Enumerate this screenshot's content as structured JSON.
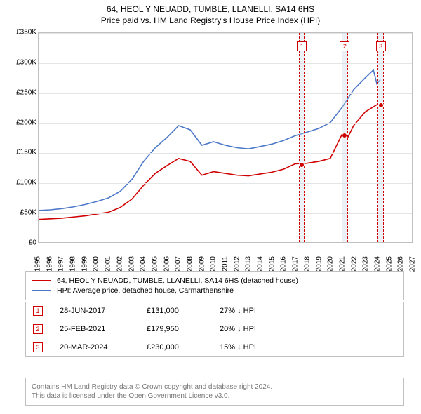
{
  "title": {
    "line1": "64, HEOL Y NEUADD, TUMBLE, LLANELLI, SA14 6HS",
    "line2": "Price paid vs. HM Land Registry's House Price Index (HPI)"
  },
  "chart": {
    "type": "line",
    "x_axis": {
      "min": 1995,
      "max": 2027,
      "ticks": [
        1995,
        1996,
        1997,
        1998,
        1999,
        2000,
        2001,
        2002,
        2003,
        2004,
        2005,
        2006,
        2007,
        2008,
        2009,
        2010,
        2011,
        2012,
        2013,
        2014,
        2015,
        2016,
        2017,
        2018,
        2019,
        2020,
        2021,
        2022,
        2023,
        2024,
        2025,
        2026,
        2027
      ]
    },
    "y_axis": {
      "min": 0,
      "max": 350000,
      "tick_step": 50000,
      "tick_labels": [
        "£0",
        "£50K",
        "£100K",
        "£150K",
        "£200K",
        "£250K",
        "£300K",
        "£350K"
      ]
    },
    "background_color": "#ffffff",
    "grid_color": "#e5e5e5",
    "series": [
      {
        "name": "property",
        "color": "#d00000",
        "width": 1.6,
        "data": [
          [
            1995,
            38000
          ],
          [
            1996,
            39000
          ],
          [
            1997,
            40000
          ],
          [
            1998,
            42000
          ],
          [
            1999,
            44000
          ],
          [
            2000,
            47000
          ],
          [
            2001,
            50000
          ],
          [
            2002,
            58000
          ],
          [
            2003,
            72000
          ],
          [
            2004,
            95000
          ],
          [
            2005,
            115000
          ],
          [
            2006,
            128000
          ],
          [
            2007,
            140000
          ],
          [
            2008,
            135000
          ],
          [
            2009,
            112000
          ],
          [
            2010,
            118000
          ],
          [
            2011,
            115000
          ],
          [
            2012,
            112000
          ],
          [
            2013,
            111000
          ],
          [
            2014,
            114000
          ],
          [
            2015,
            117000
          ],
          [
            2016,
            122000
          ],
          [
            2017,
            131000
          ],
          [
            2018,
            132000
          ],
          [
            2019,
            135000
          ],
          [
            2020,
            140000
          ],
          [
            2021,
            179950
          ],
          [
            2021.5,
            175000
          ],
          [
            2022,
            195000
          ],
          [
            2023,
            218000
          ],
          [
            2024,
            230000
          ]
        ]
      },
      {
        "name": "hpi",
        "color": "#4c78c8",
        "width": 1.6,
        "data": [
          [
            1995,
            53000
          ],
          [
            1996,
            54000
          ],
          [
            1997,
            56000
          ],
          [
            1998,
            59000
          ],
          [
            1999,
            63000
          ],
          [
            2000,
            68000
          ],
          [
            2001,
            74000
          ],
          [
            2002,
            85000
          ],
          [
            2003,
            105000
          ],
          [
            2004,
            135000
          ],
          [
            2005,
            158000
          ],
          [
            2006,
            175000
          ],
          [
            2007,
            195000
          ],
          [
            2008,
            188000
          ],
          [
            2009,
            162000
          ],
          [
            2010,
            168000
          ],
          [
            2011,
            162000
          ],
          [
            2012,
            158000
          ],
          [
            2013,
            156000
          ],
          [
            2014,
            160000
          ],
          [
            2015,
            164000
          ],
          [
            2016,
            170000
          ],
          [
            2017,
            178000
          ],
          [
            2018,
            184000
          ],
          [
            2019,
            190000
          ],
          [
            2020,
            200000
          ],
          [
            2021,
            225000
          ],
          [
            2022,
            255000
          ],
          [
            2023,
            275000
          ],
          [
            2023.7,
            288000
          ],
          [
            2024,
            265000
          ],
          [
            2024.3,
            272000
          ]
        ]
      }
    ],
    "event_bands": [
      {
        "label": "1",
        "x": 2017.49,
        "width_years": 0.5
      },
      {
        "label": "2",
        "x": 2021.15,
        "width_years": 0.5
      },
      {
        "label": "3",
        "x": 2024.22,
        "width_years": 0.5
      }
    ],
    "sale_points": [
      {
        "x": 2017.49,
        "y": 131000
      },
      {
        "x": 2021.15,
        "y": 179950
      },
      {
        "x": 2024.22,
        "y": 230000
      }
    ]
  },
  "legend": {
    "rows": [
      {
        "color": "#d00000",
        "label": "64, HEOL Y NEUADD, TUMBLE, LLANELLI, SA14 6HS (detached house)"
      },
      {
        "color": "#4c78c8",
        "label": "HPI: Average price, detached house, Carmarthenshire"
      }
    ]
  },
  "events": [
    {
      "n": "1",
      "date": "28-JUN-2017",
      "price": "£131,000",
      "delta": "27% ↓ HPI"
    },
    {
      "n": "2",
      "date": "25-FEB-2021",
      "price": "£179,950",
      "delta": "20% ↓ HPI"
    },
    {
      "n": "3",
      "date": "20-MAR-2024",
      "price": "£230,000",
      "delta": "15% ↓ HPI"
    }
  ],
  "footer": {
    "line1": "Contains HM Land Registry data © Crown copyright and database right 2024.",
    "line2": "This data is licensed under the Open Government Licence v3.0."
  }
}
